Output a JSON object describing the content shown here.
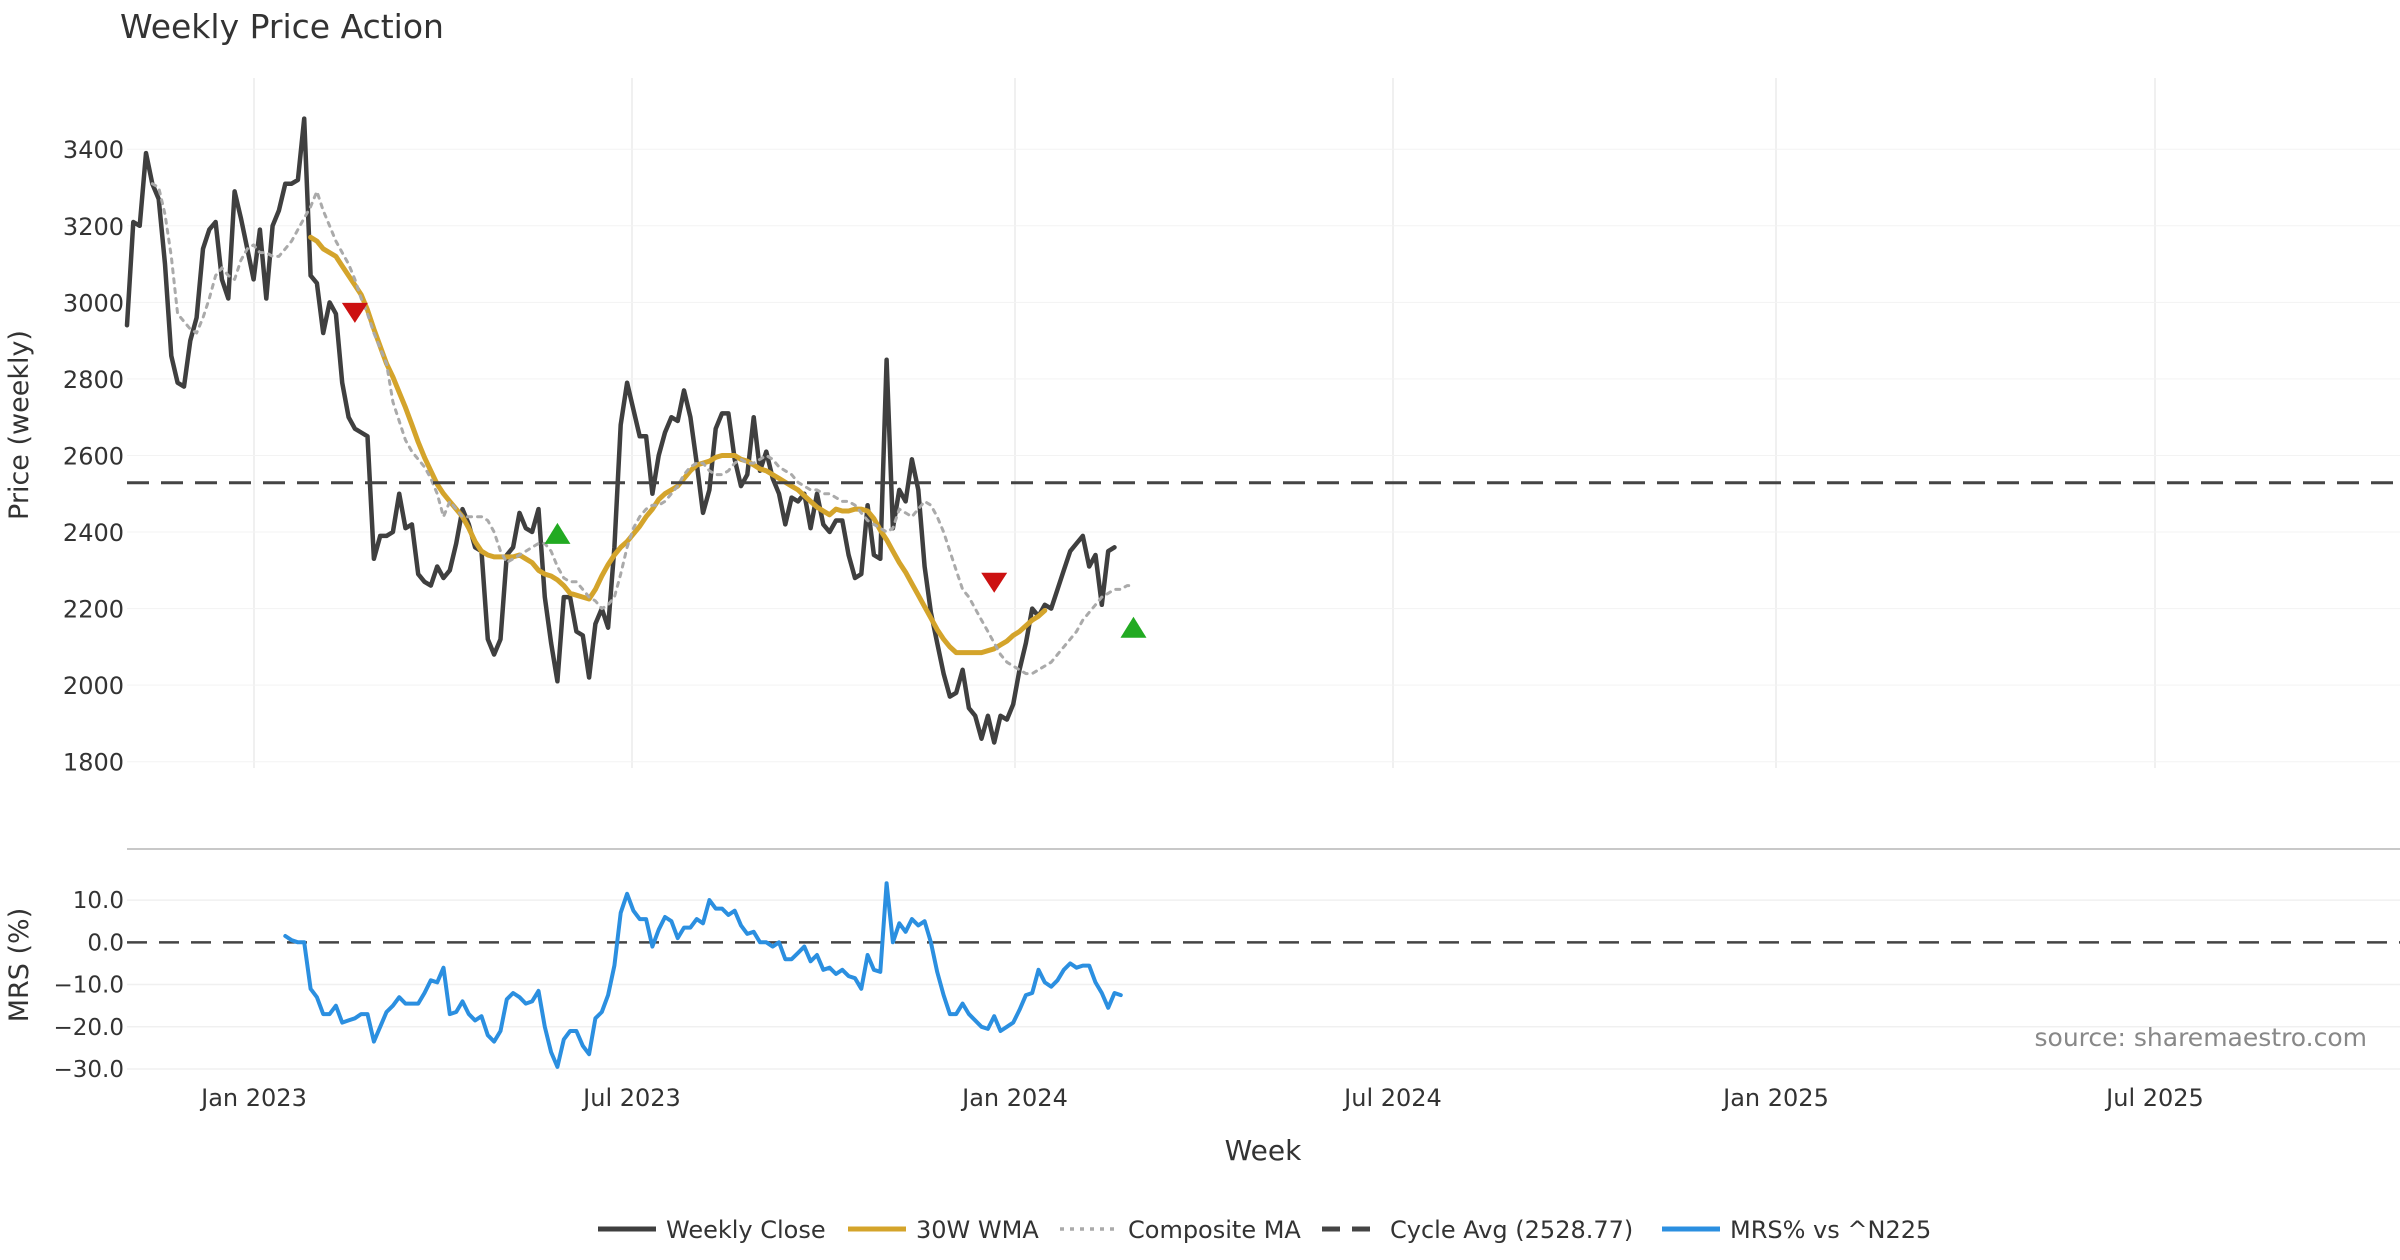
{
  "chart_data": {
    "type": "line",
    "title": "Weekly Price Action",
    "source": "source: sharemaestro.com",
    "xlabel": "Week",
    "x_ticks": [
      "Jan 2023",
      "Jul 2023",
      "Jan 2024",
      "Jul 2024",
      "Jan 2025",
      "Jul 2025"
    ],
    "cycle_avg": 2528.77,
    "price_panel": {
      "ylabel": "Price (weekly)",
      "ylim": [
        1760,
        3560
      ],
      "y_ticks": [
        "3400",
        "3200",
        "3000",
        "2800",
        "2600",
        "2400",
        "2200",
        "2000",
        "1800"
      ],
      "series": [
        {
          "name": "Weekly Close",
          "color": "#3f3f3f",
          "style": "solid",
          "start": 0,
          "values": [
            2940,
            3210,
            3200,
            3390,
            3310,
            3270,
            3100,
            2860,
            2790,
            2780,
            2900,
            2960,
            3140,
            3190,
            3210,
            3060,
            3010,
            3290,
            3220,
            3140,
            3060,
            3190,
            3010,
            3200,
            3240,
            3310,
            3310,
            3320,
            3480,
            3070,
            3050,
            2920,
            3000,
            2970,
            2790,
            2700,
            2670,
            2660,
            2650,
            2330,
            2390,
            2390,
            2400,
            2500,
            2410,
            2420,
            2290,
            2270,
            2260,
            2310,
            2280,
            2300,
            2370,
            2460,
            2420,
            2360,
            2350,
            2120,
            2080,
            2120,
            2340,
            2360,
            2450,
            2410,
            2400,
            2460,
            2230,
            2110,
            2010,
            2230,
            2230,
            2140,
            2130,
            2020,
            2160,
            2200,
            2150,
            2360,
            2680,
            2790,
            2720,
            2650,
            2650,
            2500,
            2600,
            2660,
            2700,
            2690,
            2770,
            2700,
            2580,
            2450,
            2510,
            2670,
            2710,
            2710,
            2590,
            2520,
            2550,
            2700,
            2560,
            2610,
            2540,
            2500,
            2420,
            2490,
            2480,
            2500,
            2410,
            2500,
            2420,
            2400,
            2430,
            2430,
            2340,
            2280,
            2290,
            2470,
            2340,
            2330,
            2850,
            2410,
            2510,
            2480,
            2590,
            2510,
            2310,
            2190,
            2110,
            2030,
            1970,
            1980,
            2040,
            1940,
            1920,
            1860,
            1920,
            1850,
            1920,
            1910,
            1950,
            2040,
            2110,
            2200,
            2180,
            2210,
            2200,
            2250,
            2300,
            2350,
            2370,
            2390,
            2310,
            2340,
            2210,
            2350,
            2360
          ]
        },
        {
          "name": "30W WMA",
          "color": "#d4a42b",
          "style": "solid",
          "start": 29,
          "values": [
            3170,
            3160,
            3140,
            3130,
            3120,
            3095,
            3070,
            3045,
            3020,
            2980,
            2930,
            2885,
            2840,
            2805,
            2765,
            2725,
            2680,
            2635,
            2595,
            2560,
            2525,
            2500,
            2480,
            2460,
            2440,
            2410,
            2375,
            2350,
            2340,
            2335,
            2335,
            2335,
            2335,
            2340,
            2330,
            2320,
            2300,
            2290,
            2285,
            2275,
            2260,
            2240,
            2235,
            2230,
            2225,
            2250,
            2285,
            2315,
            2340,
            2360,
            2375,
            2395,
            2415,
            2440,
            2460,
            2485,
            2500,
            2510,
            2520,
            2540,
            2560,
            2575,
            2580,
            2585,
            2595,
            2600,
            2600,
            2600,
            2590,
            2585,
            2575,
            2565,
            2560,
            2550,
            2540,
            2530,
            2520,
            2510,
            2495,
            2480,
            2465,
            2455,
            2445,
            2460,
            2455,
            2455,
            2460,
            2460,
            2455,
            2435,
            2405,
            2380,
            2350,
            2320,
            2295,
            2265,
            2235,
            2205,
            2175,
            2145,
            2120,
            2100,
            2085,
            2085,
            2085,
            2085,
            2085,
            2090,
            2095,
            2105,
            2115,
            2130,
            2140,
            2155,
            2170,
            2180,
            2195
          ]
        },
        {
          "name": "Composite MA",
          "color": "#aaaaaa",
          "style": "dotted",
          "start": 4,
          "values": [
            3310,
            3300,
            3230,
            3120,
            2970,
            2950,
            2930,
            2920,
            2960,
            3010,
            3070,
            3090,
            3070,
            3060,
            3110,
            3140,
            3150,
            3130,
            3130,
            3120,
            3120,
            3140,
            3160,
            3190,
            3220,
            3250,
            3290,
            3240,
            3200,
            3160,
            3130,
            3100,
            3060,
            3010,
            2970,
            2920,
            2880,
            2840,
            2740,
            2690,
            2640,
            2610,
            2590,
            2570,
            2540,
            2500,
            2440,
            2480,
            2460,
            2440,
            2440,
            2440,
            2440,
            2430,
            2400,
            2350,
            2320,
            2330,
            2340,
            2350,
            2360,
            2370,
            2370,
            2350,
            2310,
            2280,
            2270,
            2270,
            2250,
            2230,
            2220,
            2200,
            2210,
            2230,
            2290,
            2360,
            2410,
            2440,
            2460,
            2470,
            2470,
            2480,
            2500,
            2520,
            2550,
            2570,
            2580,
            2580,
            2560,
            2550,
            2550,
            2560,
            2580,
            2590,
            2580,
            2580,
            2590,
            2600,
            2590,
            2570,
            2560,
            2550,
            2530,
            2520,
            2510,
            2510,
            2500,
            2500,
            2490,
            2480,
            2480,
            2470,
            2450,
            2430,
            2420,
            2410,
            2400,
            2410,
            2460,
            2450,
            2440,
            2460,
            2480,
            2470,
            2440,
            2400,
            2350,
            2300,
            2250,
            2230,
            2200,
            2170,
            2140,
            2110,
            2080,
            2060,
            2050,
            2040,
            2030,
            2030,
            2040,
            2050,
            2060,
            2080,
            2100,
            2120,
            2140,
            2170,
            2190,
            2210,
            2230,
            2240,
            2250,
            2250,
            2260,
            2260
          ]
        },
        {
          "name": "Cycle Avg (2528.77)",
          "color": "#444444",
          "style": "dashed",
          "constant": 2528.77
        }
      ],
      "signals": [
        {
          "type": "sell",
          "index": 36,
          "value": 2975,
          "color": "#cc1111"
        },
        {
          "type": "buy",
          "index": 68,
          "value": 2395,
          "color": "#22aa22"
        },
        {
          "type": "sell",
          "index": 137,
          "value": 2270,
          "color": "#cc1111"
        },
        {
          "type": "buy",
          "index": 159,
          "value": 2150,
          "color": "#22aa22"
        }
      ]
    },
    "mrs_panel": {
      "ylabel": "MRS (%)",
      "ylim": [
        -30,
        15
      ],
      "y_ticks": [
        "10.0",
        "0.0",
        "−10.0",
        "−20.0",
        "−30.0"
      ],
      "series": [
        {
          "name": "MRS% vs ^N225",
          "color": "#2b8fe0",
          "style": "solid",
          "start": 25,
          "values": [
            1.5,
            0.5,
            0,
            0,
            -11,
            -13,
            -17,
            -17,
            -15,
            -19,
            -18.5,
            -18,
            -17,
            -17,
            -23.5,
            -20,
            -16.5,
            -15,
            -13,
            -14.5,
            -14.5,
            -14.5,
            -12,
            -9,
            -9.5,
            -6,
            -17,
            -16.5,
            -14,
            -17,
            -18.5,
            -17.5,
            -22,
            -23.5,
            -21,
            -13.5,
            -12,
            -13,
            -14.5,
            -14,
            -11.5,
            -20,
            -26,
            -29.5,
            -23,
            -21,
            -21,
            -24.5,
            -26.5,
            -18,
            -16.5,
            -12.5,
            -5.5,
            7,
            11.5,
            7.5,
            5.5,
            5.5,
            -1,
            3,
            6,
            5,
            1,
            3.5,
            3.5,
            5.5,
            4.5,
            10,
            8,
            8,
            6.5,
            7.5,
            4,
            2,
            2.5,
            0,
            0,
            -1,
            0,
            -4,
            -4,
            -2.5,
            -1,
            -4.5,
            -3,
            -6.5,
            -6,
            -7.5,
            -6.5,
            -8,
            -8.5,
            -11,
            -3,
            -6.5,
            -7,
            14,
            0,
            4.5,
            2.5,
            5.5,
            4,
            5,
            0,
            -7,
            -12.5,
            -17,
            -17,
            -14.5,
            -17,
            -18.5,
            -20,
            -20.5,
            -17.5,
            -21,
            -20,
            -19,
            -16,
            -12.5,
            -12,
            -6.5,
            -9.5,
            -10.5,
            -9,
            -6.5,
            -5,
            -6,
            -5.5,
            -5.5,
            -9.5,
            -12,
            -15.5,
            -12,
            -12.5
          ]
        }
      ]
    }
  }
}
